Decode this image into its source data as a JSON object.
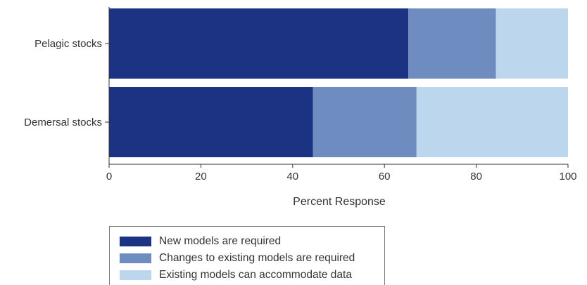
{
  "chart_data": {
    "type": "bar",
    "orientation": "horizontal",
    "stacked": true,
    "categories": [
      "Pelagic stocks",
      "Demersal stocks"
    ],
    "series": [
      {
        "name": "New models are required",
        "values": [
          65.2,
          44.4
        ],
        "color": "#1c3282"
      },
      {
        "name": "Changes to existing models are required",
        "values": [
          19.1,
          22.6
        ],
        "color": "#6e8cbf"
      },
      {
        "name": "Existing models can accommodate data",
        "values": [
          15.7,
          33.0
        ],
        "color": "#bcd6ee"
      }
    ],
    "xlabel": "Percent Response",
    "ylabel": "",
    "xlim": [
      0,
      100
    ],
    "xticks": [
      0,
      20,
      40,
      60,
      80,
      100
    ],
    "grid": false,
    "legend_position": "bottom"
  }
}
